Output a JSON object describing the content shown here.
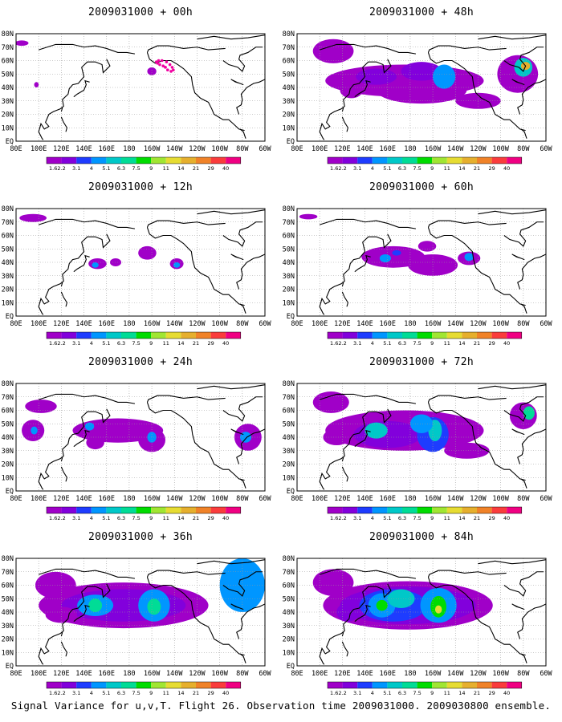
{
  "figure": {
    "caption": "Signal Variance for u,v,T. Flight 26. Observation time 2009031000. 2009030800 ensemble."
  },
  "axes": {
    "lon_labels": [
      "80E",
      "100E",
      "120E",
      "140E",
      "160E",
      "180",
      "160W",
      "140W",
      "120W",
      "100W",
      "80W",
      "60W"
    ],
    "lat_labels": [
      "EQ",
      "10N",
      "20N",
      "30N",
      "40N",
      "50N",
      "60N",
      "70N",
      "80N"
    ]
  },
  "colorbar": {
    "levels": [
      "1.6",
      "2.2",
      "3.1",
      "4",
      "5.1",
      "6.3",
      "7.5",
      "9",
      "11",
      "14",
      "21",
      "29",
      "40"
    ],
    "colors": [
      "#a000c8",
      "#8200dc",
      "#1e3cff",
      "#0096ff",
      "#00c8c8",
      "#00dc96",
      "#00dc00",
      "#a0e632",
      "#e6dc32",
      "#e6af2d",
      "#f08228",
      "#fa3c3c",
      "#f00082"
    ]
  },
  "panels": [
    {
      "title": "2009031000 + 00h",
      "lead_hours": 0
    },
    {
      "title": "2009031000 + 48h",
      "lead_hours": 48
    },
    {
      "title": "2009031000 + 12h",
      "lead_hours": 12
    },
    {
      "title": "2009031000 + 60h",
      "lead_hours": 60
    },
    {
      "title": "2009031000 + 24h",
      "lead_hours": 24
    },
    {
      "title": "2009031000 + 72h",
      "lead_hours": 72
    },
    {
      "title": "2009031000 + 36h",
      "lead_hours": 36
    },
    {
      "title": "2009031000 + 84h",
      "lead_hours": 84
    }
  ]
}
